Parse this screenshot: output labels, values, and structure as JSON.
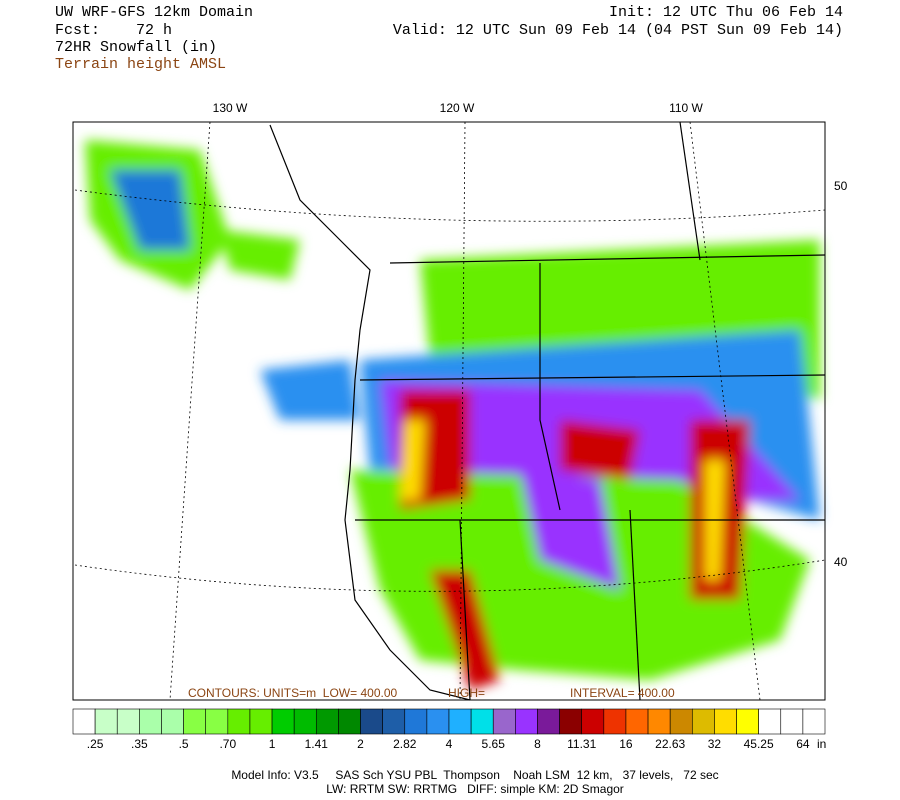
{
  "header": {
    "model": "UW WRF-GFS 12km Domain",
    "forecast": "Fcst:    72 h",
    "field": "72HR Snowfall (in)",
    "overlay": "Terrain height AMSL",
    "init": "Init: 12 UTC Thu 06 Feb 14",
    "valid": "Valid: 12 UTC Sun 09 Feb 14 (04 PST Sun 09 Feb 14)"
  },
  "map": {
    "lon_labels": [
      "130 W",
      "120 W",
      "110 W"
    ],
    "lat_labels": [
      "50",
      "40"
    ],
    "contour_note": "CONTOURS: UNITS=m  LOW= 400.00",
    "contour_high": "HIGH=",
    "contour_interval": "INTERVAL= 400.00"
  },
  "colorbar": {
    "colors": [
      "#ffffff",
      "#c8ffc8",
      "#c8ffc8",
      "#aaffaa",
      "#aaffaa",
      "#88ff44",
      "#88ff44",
      "#66ee00",
      "#66ee00",
      "#00cc00",
      "#00bb00",
      "#009900",
      "#008800",
      "#1a4a8a",
      "#1e5ea8",
      "#1f78d8",
      "#2a90f0",
      "#1fb0ff",
      "#00e0e8",
      "#9966cc",
      "#9933ff",
      "#7a1a9a",
      "#8b0000",
      "#cc0000",
      "#ee3300",
      "#ff6600",
      "#ff8800",
      "#cc8800",
      "#ddbb00",
      "#ffdd00",
      "#ffff00",
      "#ffffff",
      "#ffffff",
      "#ffffff"
    ],
    "labels": [
      ".25",
      ".35",
      ".5",
      ".70",
      "1",
      "1.41",
      "2",
      "2.82",
      "4",
      "5.65",
      "8",
      "11.31",
      "16",
      "22.63",
      "32",
      "45.25",
      "64"
    ],
    "unit": "in"
  },
  "footer": {
    "line1": "Model Info: V3.5     SAS Sch YSU PBL  Thompson    Noah LSM  12 km,   37 levels,   72 sec",
    "line2": "LW: RRTM SW: RRTMG   DIFF: simple KM: 2D Smagor"
  }
}
